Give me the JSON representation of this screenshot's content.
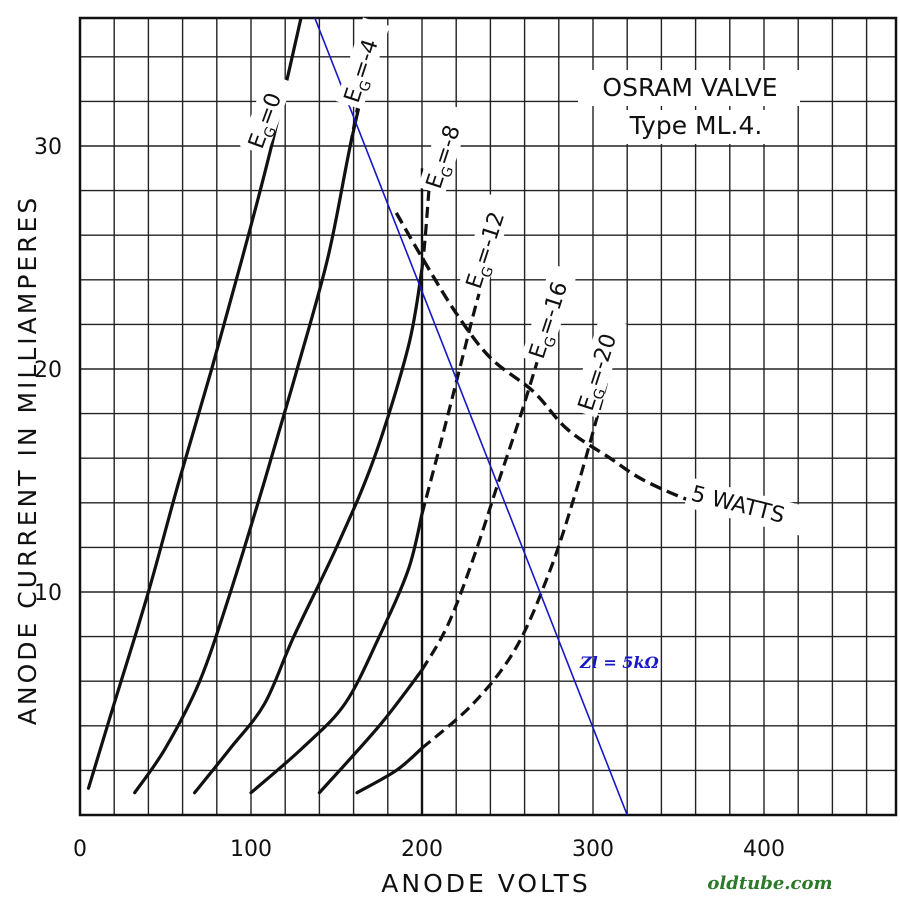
{
  "chart_data": {
    "type": "line",
    "title": "OSRAM VALVE",
    "subtitle": "Type ML.4.",
    "xlabel": "ANODE VOLTS",
    "ylabel": "ANODE CURRENT IN MILLIAMPERES",
    "xlim": [
      0,
      470
    ],
    "ylim": [
      0,
      36
    ],
    "grid": true,
    "x_ticks": [
      {
        "value": 0,
        "label": "0"
      },
      {
        "value": 100,
        "label": "100"
      },
      {
        "value": 200,
        "label": "200"
      },
      {
        "value": 300,
        "label": "300"
      },
      {
        "value": 400,
        "label": "400"
      }
    ],
    "y_ticks": [
      {
        "value": 10,
        "label": "10"
      },
      {
        "value": 20,
        "label": "20"
      },
      {
        "value": 30,
        "label": "30"
      }
    ],
    "series": [
      {
        "name": "EG=0",
        "label_parts": [
          "E",
          "G",
          "=0"
        ],
        "style": "solid",
        "points": [
          [
            5,
            1.2
          ],
          [
            20,
            5
          ],
          [
            40,
            10
          ],
          [
            58,
            15
          ],
          [
            77,
            20
          ],
          [
            95,
            25
          ],
          [
            112,
            30
          ],
          [
            130,
            36
          ]
        ]
      },
      {
        "name": "EG=-4",
        "label_parts": [
          "E",
          "G",
          "=-4"
        ],
        "style": "solid",
        "points": [
          [
            32,
            1
          ],
          [
            50,
            3
          ],
          [
            70,
            6
          ],
          [
            88,
            10
          ],
          [
            108,
            15
          ],
          [
            127,
            20
          ],
          [
            145,
            25
          ],
          [
            158,
            30
          ],
          [
            170,
            34
          ]
        ],
        "extension": [
          [
            158,
            30
          ],
          [
            163,
            32
          ],
          [
            168,
            34
          ]
        ]
      },
      {
        "name": "EG=-8",
        "label_parts": [
          "E",
          "G",
          "=-8"
        ],
        "style": "solid",
        "points": [
          [
            67,
            1
          ],
          [
            88,
            3
          ],
          [
            108,
            5
          ],
          [
            125,
            8
          ],
          [
            150,
            12
          ],
          [
            172,
            16
          ],
          [
            192,
            21
          ],
          [
            200,
            24.5
          ]
        ],
        "extension": [
          [
            200,
            24.5
          ],
          [
            202,
            26
          ],
          [
            205,
            29
          ]
        ]
      },
      {
        "name": "EG=-12",
        "label_parts": [
          "E",
          "G",
          "=-12"
        ],
        "style": "solid",
        "points": [
          [
            100,
            1
          ],
          [
            130,
            3
          ],
          [
            155,
            5
          ],
          [
            175,
            8
          ],
          [
            192,
            11
          ],
          [
            200,
            13.5
          ]
        ],
        "extension": [
          [
            200,
            13.5
          ],
          [
            212,
            17
          ],
          [
            222,
            20
          ],
          [
            232,
            23
          ],
          [
            240,
            25
          ]
        ]
      },
      {
        "name": "EG=-16",
        "label_parts": [
          "E",
          "G",
          "=-16"
        ],
        "style": "solid",
        "points": [
          [
            140,
            1
          ],
          [
            175,
            4
          ],
          [
            200,
            6.5
          ]
        ],
        "extension": [
          [
            200,
            6.5
          ],
          [
            215,
            8.5
          ],
          [
            230,
            11.5
          ],
          [
            245,
            15
          ],
          [
            258,
            18
          ],
          [
            270,
            21
          ]
        ]
      },
      {
        "name": "EG=-20",
        "label_parts": [
          "E",
          "G",
          "=-20"
        ],
        "style": "solid",
        "points": [
          [
            162,
            1
          ],
          [
            185,
            2
          ],
          [
            200,
            3
          ]
        ],
        "extension": [
          [
            200,
            3
          ],
          [
            230,
            5
          ],
          [
            255,
            7.5
          ],
          [
            275,
            11
          ],
          [
            290,
            14.5
          ],
          [
            303,
            18
          ],
          [
            310,
            20
          ]
        ]
      }
    ],
    "dissipation_curve": {
      "label": "5 WATTS",
      "points": [
        [
          185,
          27
        ],
        [
          200,
          25
        ],
        [
          220,
          22.5
        ],
        [
          240,
          20.5
        ],
        [
          265,
          19
        ],
        [
          285,
          17.3
        ],
        [
          310,
          16
        ],
        [
          330,
          15
        ],
        [
          360,
          14
        ],
        [
          390,
          13.3
        ]
      ]
    },
    "load_line": {
      "label": "Zl = 5kΩ",
      "color": "#1717c8",
      "points": [
        [
          136,
          36
        ],
        [
          320,
          0
        ]
      ]
    },
    "credit": "oldtube.com",
    "credit_color": "#2a7a2a"
  }
}
